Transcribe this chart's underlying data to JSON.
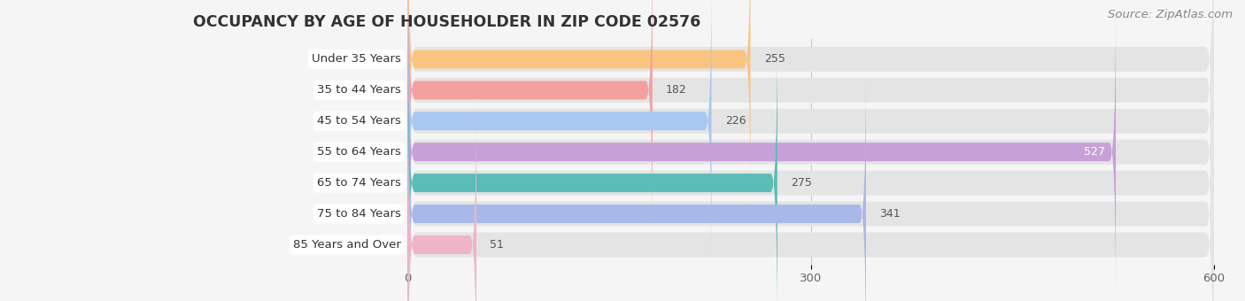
{
  "title": "OCCUPANCY BY AGE OF HOUSEHOLDER IN ZIP CODE 02576",
  "source": "Source: ZipAtlas.com",
  "categories": [
    "Under 35 Years",
    "35 to 44 Years",
    "45 to 54 Years",
    "55 to 64 Years",
    "65 to 74 Years",
    "75 to 84 Years",
    "85 Years and Over"
  ],
  "values": [
    255,
    182,
    226,
    527,
    275,
    341,
    51
  ],
  "bar_colors": [
    "#f9c480",
    "#f4a0a0",
    "#a8c8f0",
    "#c8a0d8",
    "#5bbcb8",
    "#a8b8e8",
    "#f0b4c8"
  ],
  "xlim_left": -160,
  "xlim_right": 600,
  "xticks": [
    0,
    300,
    600
  ],
  "background_color": "#f5f5f5",
  "bar_bg_color": "#e4e4e4",
  "title_fontsize": 12.5,
  "label_fontsize": 9.5,
  "value_fontsize": 9,
  "source_fontsize": 9.5
}
